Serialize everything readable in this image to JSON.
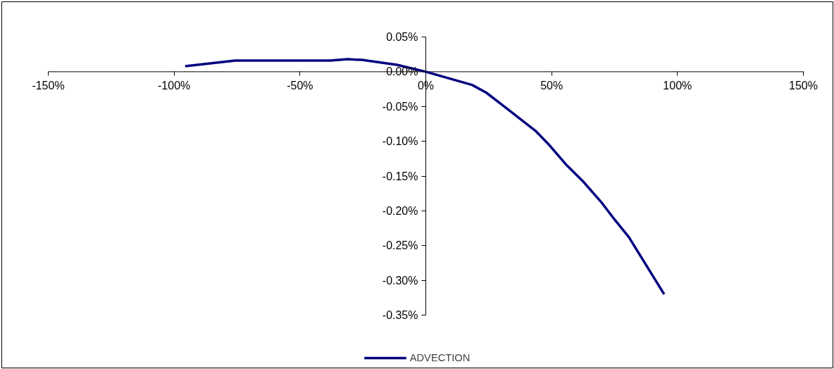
{
  "chart_data": {
    "type": "line",
    "x": [
      -95.6,
      -75.7,
      -38,
      -31,
      -25.4,
      -11.5,
      0,
      18.4,
      24,
      30.5,
      43.6,
      49.2,
      55.6,
      62.3,
      69.6,
      75.1,
      80.7,
      94.7
    ],
    "series": [
      {
        "name": "ADVECTION",
        "color": "#000080",
        "values": [
          0.008,
          0.016,
          0.016,
          0.018,
          0.017,
          0.01,
          0,
          -0.019,
          -0.03,
          -0.048,
          -0.085,
          -0.106,
          -0.133,
          -0.157,
          -0.187,
          -0.213,
          -0.238,
          -0.32
        ]
      }
    ],
    "xlim": [
      -150,
      150
    ],
    "ylim": [
      -0.35,
      0.05
    ],
    "xticks": [
      {
        "value": -150,
        "label": "-150%"
      },
      {
        "value": -100,
        "label": "-100%"
      },
      {
        "value": -50,
        "label": "-50%"
      },
      {
        "value": 0,
        "label": "0%"
      },
      {
        "value": 50,
        "label": "50%"
      },
      {
        "value": 100,
        "label": "100%"
      },
      {
        "value": 150,
        "label": "150%"
      }
    ],
    "yticks": [
      {
        "value": 0.05,
        "label": "0.05%"
      },
      {
        "value": 0,
        "label": "0.00%"
      },
      {
        "value": -0.05,
        "label": "-0.05%"
      },
      {
        "value": -0.1,
        "label": "-0.10%"
      },
      {
        "value": -0.15,
        "label": "-0.15%"
      },
      {
        "value": -0.2,
        "label": "-0.20%"
      },
      {
        "value": -0.25,
        "label": "-0.25%"
      },
      {
        "value": -0.3,
        "label": "-0.30%"
      },
      {
        "value": -0.35,
        "label": "-0.35%"
      }
    ],
    "grid": false,
    "legend": "bottom",
    "marker": "none",
    "line_style": "solid"
  }
}
